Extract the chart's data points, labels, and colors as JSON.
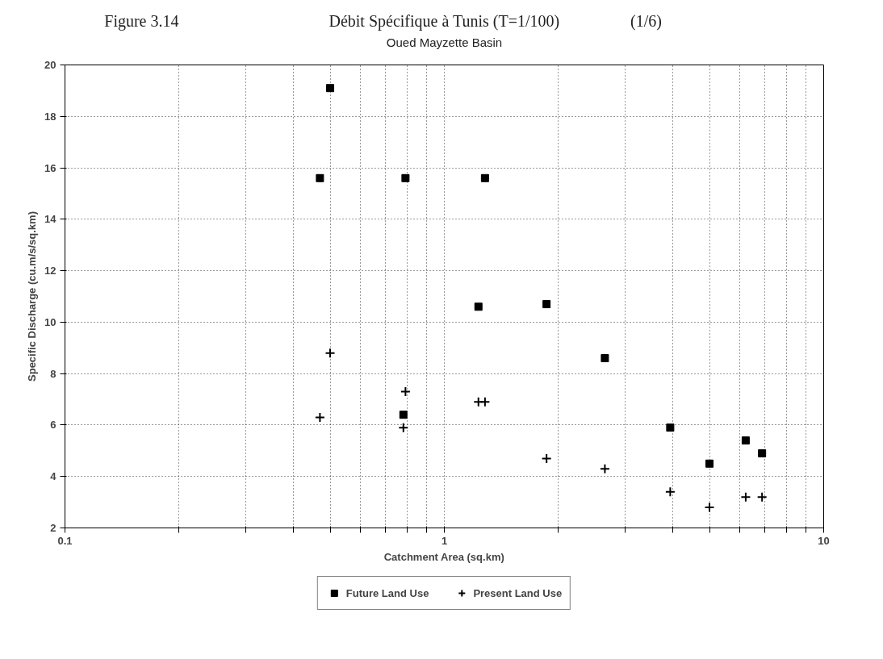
{
  "chart_data": {
    "type": "scatter",
    "title": "Débit Spécifique à Tunis (T=1/100)",
    "subtitle": "Oued Mayzette Basin",
    "annotations": [
      "Figure 3.14",
      "(1/6)"
    ],
    "xlabel": "Catchment Area (sq.km)",
    "ylabel": "Specific Discharge (cu.m/s/sq.km)",
    "x": [
      0.47,
      0.5,
      0.79,
      0.78,
      1.23,
      1.28,
      1.86,
      2.65,
      3.94,
      5.0,
      6.23,
      6.88
    ],
    "series": [
      {
        "name": "Future Land Use",
        "color": "#000000",
        "marker": "square",
        "values": [
          15.6,
          19.1,
          15.6,
          6.4,
          10.6,
          15.6,
          10.7,
          8.6,
          5.9,
          4.5,
          5.4,
          4.9
        ]
      },
      {
        "name": "Present Land Use",
        "color": "#000000",
        "marker": "cross",
        "values": [
          6.3,
          8.8,
          7.3,
          5.9,
          6.9,
          6.9,
          4.7,
          4.3,
          3.4,
          2.8,
          3.2,
          3.2
        ]
      }
    ],
    "log": "x",
    "xlim": [
      0.1,
      10
    ],
    "xticks": [
      0.1,
      {
        "value": 0.2,
        "label": null
      },
      {
        "value": 0.3,
        "label": null
      },
      {
        "value": 0.4,
        "label": null
      },
      {
        "value": 0.5,
        "label": null
      },
      {
        "value": 0.6,
        "label": null
      },
      {
        "value": 0.7,
        "label": null
      },
      {
        "value": 0.8,
        "label": null
      },
      {
        "value": 0.9,
        "label": null
      },
      1,
      {
        "value": 2,
        "label": null
      },
      {
        "value": 3,
        "label": null
      },
      {
        "value": 4,
        "label": null
      },
      {
        "value": 5,
        "label": null
      },
      {
        "value": 6,
        "label": null
      },
      {
        "value": 7,
        "label": null
      },
      {
        "value": 8,
        "label": null
      },
      {
        "value": 9,
        "label": null
      },
      10
    ],
    "ylim": [
      2,
      20
    ],
    "yticks": [
      2,
      4,
      6,
      8,
      10,
      12,
      14,
      16,
      18,
      20
    ],
    "grid": true,
    "legend": "bottom"
  }
}
